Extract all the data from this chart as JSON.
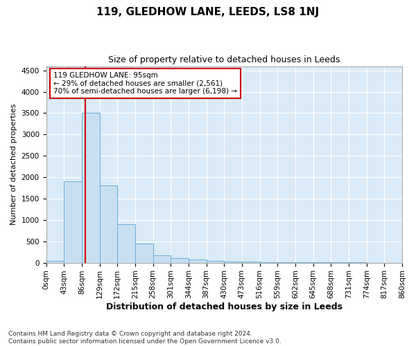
{
  "title": "119, GLEDHOW LANE, LEEDS, LS8 1NJ",
  "subtitle": "Size of property relative to detached houses in Leeds",
  "xlabel": "Distribution of detached houses by size in Leeds",
  "ylabel": "Number of detached properties",
  "bar_values": [
    50,
    1900,
    3500,
    1800,
    900,
    450,
    175,
    110,
    75,
    50,
    30,
    20,
    15,
    10,
    8,
    5,
    4,
    3
  ],
  "bin_edges": [
    0,
    43,
    86,
    129,
    172,
    215,
    258,
    301,
    344,
    387,
    430,
    473,
    516,
    559,
    602,
    645,
    688,
    731,
    774
  ],
  "bin_width": 43,
  "x_tick_positions": [
    0,
    43,
    86,
    129,
    172,
    215,
    258,
    301,
    344,
    387,
    430,
    473,
    516,
    559,
    602,
    645,
    688,
    731,
    774,
    817,
    860
  ],
  "x_tick_labels": [
    "0sqm",
    "43sqm",
    "86sqm",
    "129sqm",
    "172sqm",
    "215sqm",
    "258sqm",
    "301sqm",
    "344sqm",
    "387sqm",
    "430sqm",
    "473sqm",
    "516sqm",
    "559sqm",
    "602sqm",
    "645sqm",
    "688sqm",
    "731sqm",
    "774sqm",
    "817sqm",
    "860sqm"
  ],
  "xlim": [
    0,
    860
  ],
  "ylim": [
    0,
    4600
  ],
  "yticks": [
    0,
    500,
    1000,
    1500,
    2000,
    2500,
    3000,
    3500,
    4000,
    4500
  ],
  "bar_color": "#c8dff2",
  "bar_edge_color": "#6aaed6",
  "grid_color": "#ffffff",
  "bg_color": "#daeaf6",
  "fig_bg_color": "#ffffff",
  "vline_x": 95,
  "vline_color": "#cc0000",
  "annotation_text": "119 GLEDHOW LANE: 95sqm\n← 29% of detached houses are smaller (2,561)\n70% of semi-detached houses are larger (6,198) →",
  "annotation_box_color": "#cc0000",
  "title_fontsize": 11,
  "subtitle_fontsize": 9,
  "ylabel_fontsize": 8,
  "xlabel_fontsize": 9,
  "tick_fontsize": 7.5,
  "annotation_fontsize": 7.5,
  "footer_fontsize": 6.5,
  "footer_line1": "Contains HM Land Registry data © Crown copyright and database right 2024.",
  "footer_line2": "Contains public sector information licensed under the Open Government Licence v3.0."
}
